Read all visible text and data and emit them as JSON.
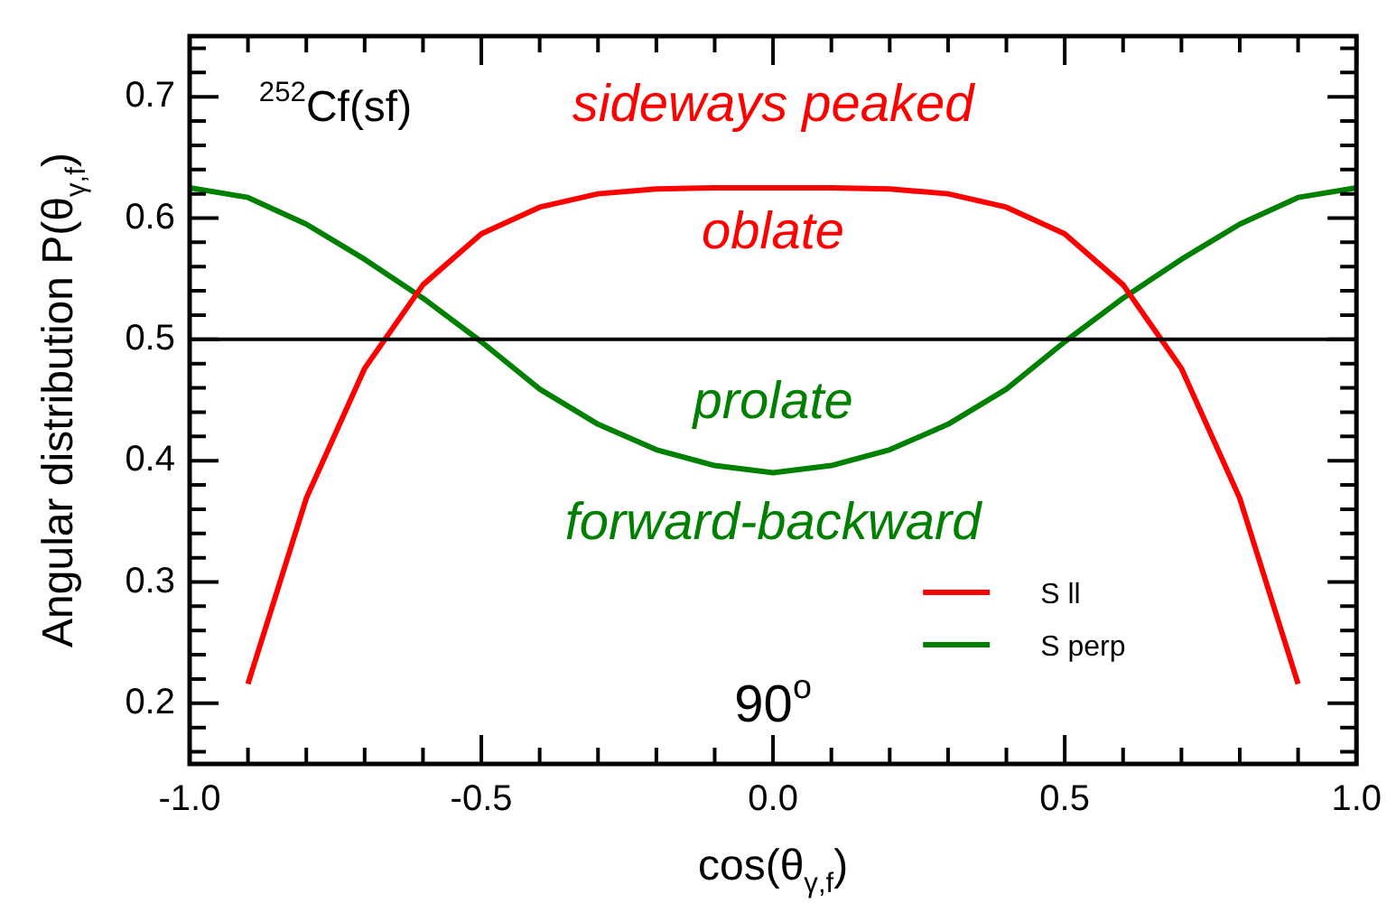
{
  "chart_data": {
    "type": "line",
    "xlabel": "cos(θ$_{γ,f}$)",
    "ylabel": "Angular distribution P(θ$_{γ,f}$)",
    "x": [
      -1.0,
      -0.9,
      -0.8,
      -0.7,
      -0.6,
      -0.5,
      -0.4,
      -0.3,
      -0.2,
      -0.1,
      0.0,
      0.1,
      0.2,
      0.3,
      0.4,
      0.5,
      0.6,
      0.7,
      0.8,
      0.9,
      1.0
    ],
    "series": [
      {
        "name": "S ll",
        "color": "#ff0000",
        "x": [
          -0.9,
          -0.8,
          -0.7,
          -0.6,
          -0.5,
          -0.4,
          -0.3,
          -0.2,
          -0.1,
          0.0,
          0.1,
          0.2,
          0.3,
          0.4,
          0.5,
          0.6,
          0.7,
          0.8,
          0.9
        ],
        "values": [
          0.216,
          0.369,
          0.476,
          0.545,
          0.587,
          0.609,
          0.62,
          0.624,
          0.625,
          0.625,
          0.625,
          0.624,
          0.62,
          0.609,
          0.587,
          0.545,
          0.476,
          0.369,
          0.216
        ]
      },
      {
        "name": "S perp",
        "color": "#008000",
        "values": [
          0.625,
          0.617,
          0.595,
          0.566,
          0.534,
          0.498,
          0.459,
          0.43,
          0.409,
          0.396,
          0.39,
          0.396,
          0.409,
          0.43,
          0.459,
          0.498,
          0.534,
          0.566,
          0.595,
          0.617,
          0.625
        ]
      }
    ],
    "xlim": [
      -1.0,
      1.0
    ],
    "xticks": [
      {
        "value": -1.0,
        "label": "-1.0"
      },
      {
        "value": -0.9,
        "label": null
      },
      {
        "value": -0.8,
        "label": null
      },
      {
        "value": -0.7,
        "label": null
      },
      {
        "value": -0.6,
        "label": null
      },
      {
        "value": -0.5,
        "label": "-0.5"
      },
      {
        "value": -0.4,
        "label": null
      },
      {
        "value": -0.3,
        "label": null
      },
      {
        "value": -0.2,
        "label": null
      },
      {
        "value": -0.1,
        "label": null
      },
      {
        "value": 0,
        "label": "0.0"
      },
      {
        "value": 0.1,
        "label": null
      },
      {
        "value": 0.2,
        "label": null
      },
      {
        "value": 0.3,
        "label": null
      },
      {
        "value": 0.4,
        "label": null
      },
      {
        "value": 0.5,
        "label": "0.5"
      },
      {
        "value": 0.6,
        "label": null
      },
      {
        "value": 0.7,
        "label": null
      },
      {
        "value": 0.8,
        "label": null
      },
      {
        "value": 0.9,
        "label": null
      },
      {
        "value": 1.0,
        "label": "1.0"
      }
    ],
    "ylim": [
      0.15,
      0.75
    ],
    "yticks": [
      {
        "value": 0.16,
        "label": null
      },
      {
        "value": 0.18,
        "label": null
      },
      0.2,
      {
        "value": 0.22,
        "label": null
      },
      {
        "value": 0.24,
        "label": null
      },
      {
        "value": 0.26,
        "label": null
      },
      {
        "value": 0.28,
        "label": null
      },
      0.3,
      {
        "value": 0.32,
        "label": null
      },
      {
        "value": 0.34,
        "label": null
      },
      {
        "value": 0.36,
        "label": null
      },
      {
        "value": 0.38,
        "label": null
      },
      0.4,
      {
        "value": 0.42,
        "label": null
      },
      {
        "value": 0.44,
        "label": null
      },
      {
        "value": 0.46,
        "label": null
      },
      {
        "value": 0.48,
        "label": null
      },
      0.5,
      {
        "value": 0.52,
        "label": null
      },
      {
        "value": 0.54,
        "label": null
      },
      {
        "value": 0.56,
        "label": null
      },
      {
        "value": 0.58,
        "label": null
      },
      0.6,
      {
        "value": 0.62,
        "label": null
      },
      {
        "value": 0.64,
        "label": null
      },
      {
        "value": 0.66,
        "label": null
      },
      {
        "value": 0.68,
        "label": null
      },
      0.7,
      {
        "value": 0.72,
        "label": null
      },
      {
        "value": 0.74,
        "label": null
      }
    ],
    "ref_lines": [
      {
        "axis": "y",
        "value": 0.5,
        "color": "#000000"
      }
    ],
    "annotations": [
      "$^{252}$Cf(sf)",
      "sideways peaked",
      "oblate",
      "prolate",
      "forward-backward",
      "90$^{o}$"
    ],
    "legend": "bottom right",
    "grid": false,
    "marker": "none",
    "line_style": "solid"
  }
}
